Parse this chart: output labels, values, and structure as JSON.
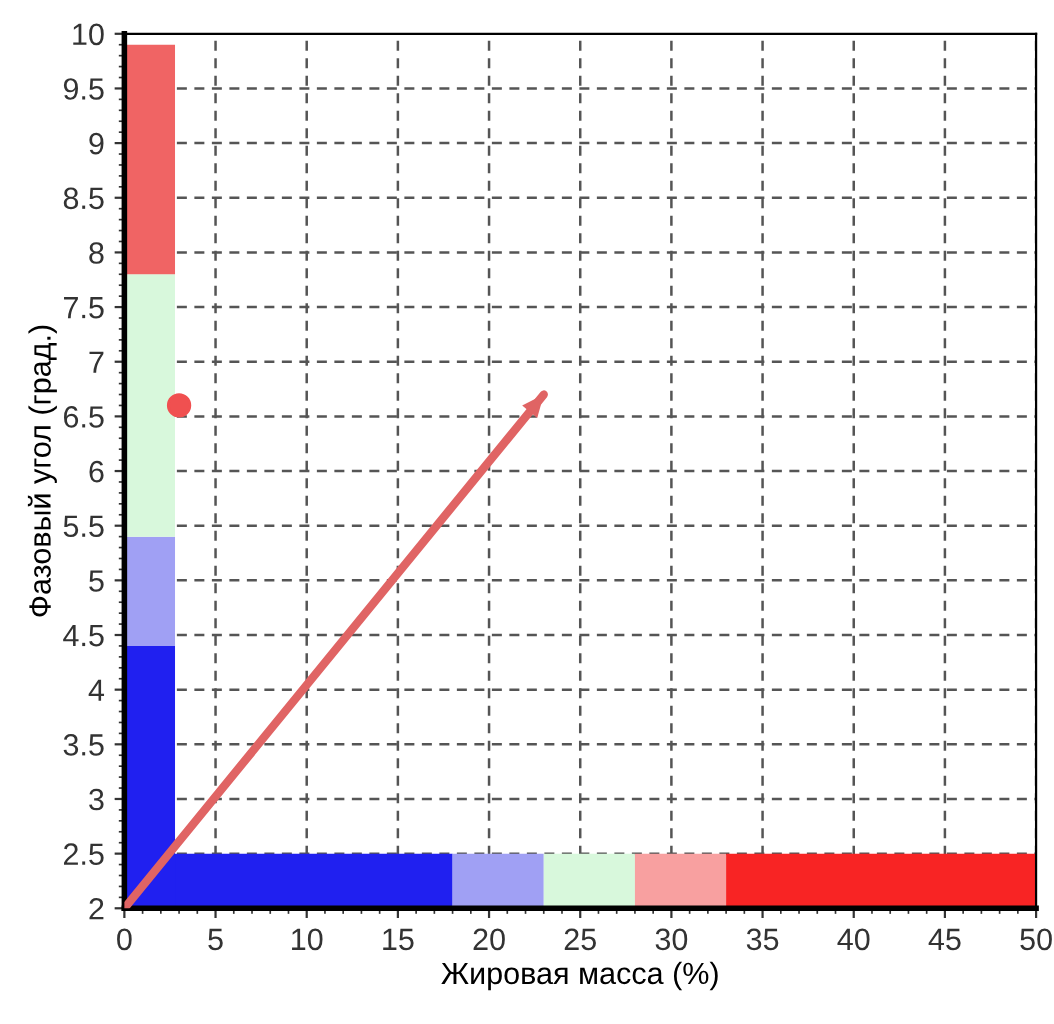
{
  "chart_data": {
    "type": "scatter",
    "xlabel": "Жировая масса (%)",
    "ylabel": "Фазовый угол (град.)",
    "xlim": [
      0,
      50
    ],
    "ylim": [
      2,
      10
    ],
    "xticks": [
      0,
      5,
      10,
      15,
      20,
      25,
      30,
      35,
      40,
      45,
      50
    ],
    "yticks": [
      2,
      2.5,
      3,
      3.5,
      4,
      4.5,
      5,
      5.5,
      6,
      6.5,
      7,
      7.5,
      8,
      8.5,
      9,
      9.5,
      10
    ],
    "grid": true,
    "series": [
      {
        "type": "line",
        "color": "#e06464",
        "x": [
          0,
          23
        ],
        "values": [
          2,
          6.7
        ],
        "marker": "none",
        "line_style": "solid"
      },
      {
        "color": "#f05050",
        "x": [
          3
        ],
        "values": [
          6.6
        ],
        "marker": "circle"
      }
    ],
    "bands": [
      {
        "axis": "x",
        "from": 0,
        "to": 18,
        "color": "#2020f0"
      },
      {
        "axis": "x",
        "from": 18,
        "to": 23,
        "color": "#a0a0f4"
      },
      {
        "axis": "x",
        "from": 23,
        "to": 28,
        "color": "#d8f8dc"
      },
      {
        "axis": "x",
        "from": 28,
        "to": 33,
        "color": "#f8a0a0"
      },
      {
        "axis": "x",
        "from": 33,
        "to": 50,
        "color": "#f82424"
      },
      {
        "axis": "y",
        "from": 2,
        "to": 4.4,
        "color": "#2020f0"
      },
      {
        "axis": "y",
        "from": 4.4,
        "to": 5.4,
        "color": "#a0a0f4"
      },
      {
        "axis": "y",
        "from": 5.4,
        "to": 7.8,
        "color": "#d8f8dc"
      },
      {
        "axis": "y",
        "from": 7.8,
        "to": 9.9,
        "color": "#f06464"
      }
    ]
  }
}
